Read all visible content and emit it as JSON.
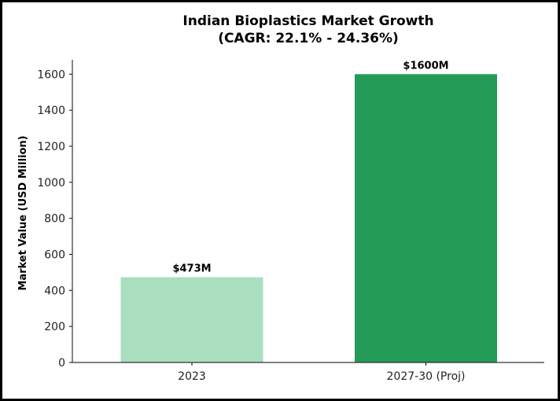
{
  "chart_data": {
    "type": "bar",
    "title": "Indian Bioplastics Market Growth",
    "subtitle": "(CAGR: 22.1% - 24.36%)",
    "xlabel": "",
    "ylabel": "Market Value (USD Million)",
    "categories": [
      "2023",
      "2027-30 (Proj)"
    ],
    "values": [
      473,
      1600
    ],
    "data_labels": [
      "$473M",
      "$1600M"
    ],
    "colors": [
      "#a9dfbf",
      "#239b56"
    ],
    "ylim": [
      0,
      1680
    ],
    "yticks": [
      0,
      200,
      400,
      600,
      800,
      1000,
      1200,
      1400,
      1600
    ],
    "grid": false
  }
}
